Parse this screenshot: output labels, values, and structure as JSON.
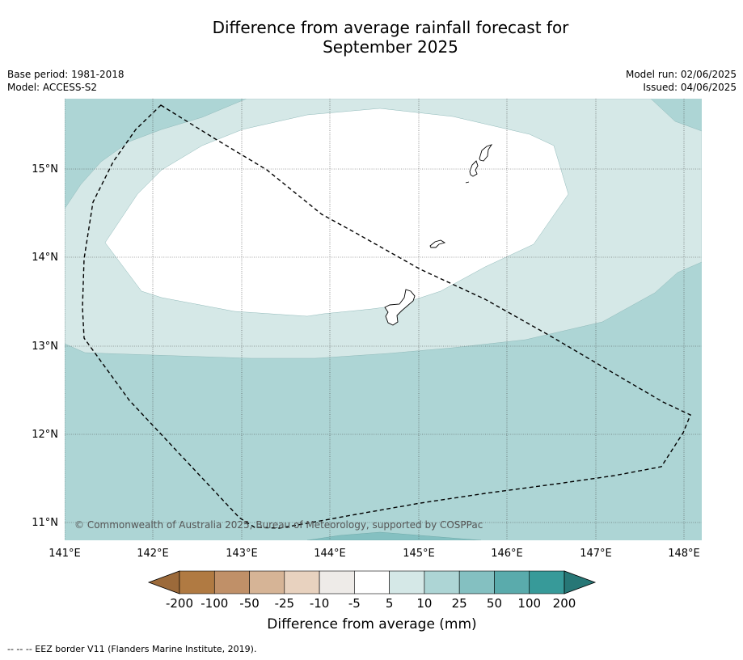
{
  "header": {
    "title_line1": "Difference from average rainfall forecast for",
    "title_line2": "September 2025",
    "base_period": "Base period: 1981-2018",
    "model": "Model: ACCESS-S2",
    "model_run": "Model run: 02/06/2025",
    "issued": "Issued: 04/06/2025"
  },
  "map": {
    "copyright": "© Commonwealth of Australia 2025, Bureau of Meteorology, supported by COSPPac",
    "longitude_ticks": [
      "141°E",
      "142°E",
      "143°E",
      "144°E",
      "145°E",
      "146°E",
      "147°E",
      "148°E"
    ],
    "latitude_ticks": [
      "15°N",
      "14°N",
      "13°N",
      "12°N",
      "11°N"
    ],
    "extent": {
      "lon": [
        141,
        148.2
      ],
      "lat": [
        10.8,
        15.8
      ]
    }
  },
  "colorbar": {
    "title": "Difference from average (mm)",
    "ticks": [
      "-200",
      "-100",
      "-50",
      "-25",
      "-10",
      "-5",
      "5",
      "10",
      "25",
      "50",
      "100",
      "200"
    ],
    "colors": [
      "#9c6a3a",
      "#b07a42",
      "#c09068",
      "#d6b496",
      "#e8d2bf",
      "#eeebe8",
      "#ffffff",
      "#d5e8e7",
      "#add5d5",
      "#84c0c1",
      "#5aabac",
      "#379a99",
      "#277776"
    ]
  },
  "footnote": "-- -- -- EEZ border V11 (Flanders Marine Institute, 2019)."
}
